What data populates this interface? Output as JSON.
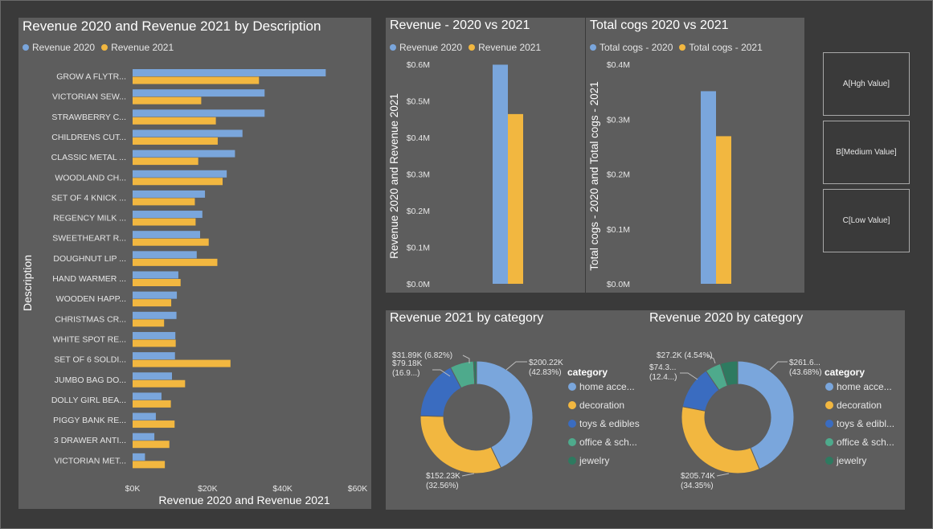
{
  "colors": {
    "series_2020": "#7aa6dc",
    "series_2021": "#f2b740",
    "home": "#7aa6dc",
    "decoration": "#f2b740",
    "toys": "#3a6cc0",
    "office": "#4eaa8c",
    "jewelry": "#2e7a60"
  },
  "bar_panel": {
    "title": "Revenue 2020 and Revenue 2021 by Description",
    "legend": [
      "Revenue 2020",
      "Revenue 2021"
    ]
  },
  "rev_panel": {
    "title": "Revenue - 2020 vs 2021",
    "legend": [
      "Revenue 2020",
      "Revenue 2021"
    ]
  },
  "cogs_panel": {
    "title": "Total cogs 2020 vs 2021",
    "legend": [
      "Total cogs - 2020",
      "Total cogs - 2021"
    ]
  },
  "donut1": {
    "title": "Revenue 2021 by category"
  },
  "donut2": {
    "title": "Revenue 2020 by category"
  },
  "slicer": {
    "buttons": [
      "A[Hgh Value]",
      "B[Medium Value]",
      "C[Low Value]"
    ]
  },
  "chart_data": [
    {
      "type": "bar",
      "orientation": "horizontal",
      "title": "Revenue 2020 and Revenue 2021 by Description",
      "xlabel": "Revenue 2020 and Revenue 2021",
      "ylabel": "Description",
      "xlim": [
        0,
        60000
      ],
      "xticks": [
        "$0K",
        "$20K",
        "$40K",
        "$60K"
      ],
      "legend_position": "top-left",
      "categories": [
        "GROW A FLYTR...",
        "VICTORIAN SEW...",
        "STRAWBERRY C...",
        "CHILDRENS CUT...",
        "CLASSIC METAL ...",
        "WOODLAND CH...",
        "SET OF 4 KNICK ...",
        "REGENCY MILK ...",
        "SWEETHEART R...",
        "DOUGHNUT LIP ...",
        "HAND WARMER ...",
        "WOODEN HAPP...",
        "CHRISTMAS CR...",
        "WHITE SPOT RE...",
        "SET OF 6 SOLDI...",
        "JUMBO BAG DO...",
        "DOLLY GIRL BEA...",
        "PIGGY BANK RE...",
        "3 DRAWER ANTI...",
        "VICTORIAN MET..."
      ],
      "series": [
        {
          "name": "Revenue 2020",
          "values": [
            51500,
            35200,
            35200,
            29300,
            27300,
            25100,
            19300,
            18600,
            18000,
            17100,
            12200,
            11800,
            11700,
            11400,
            11300,
            10500,
            7700,
            6200,
            5800,
            3300
          ]
        },
        {
          "name": "Revenue 2021",
          "values": [
            33700,
            18300,
            22200,
            22700,
            17500,
            24000,
            16600,
            16800,
            20300,
            22600,
            12800,
            10300,
            8400,
            11500,
            26100,
            14000,
            10200,
            11200,
            9800,
            8600
          ]
        }
      ]
    },
    {
      "type": "bar",
      "title": "Revenue - 2020 vs 2021",
      "ylabel": "Revenue 2020 and Revenue 2021",
      "ylim": [
        0,
        600000
      ],
      "yticks": [
        "$0.0M",
        "$0.1M",
        "$0.2M",
        "$0.3M",
        "$0.4M",
        "$0.5M",
        "$0.6M"
      ],
      "series": [
        {
          "name": "Revenue 2020",
          "values": [
            599000
          ]
        },
        {
          "name": "Revenue 2021",
          "values": [
            464000
          ]
        }
      ]
    },
    {
      "type": "bar",
      "title": "Total cogs 2020 vs 2021",
      "ylabel": "Total cogs - 2020 and Total cogs - 2021",
      "ylim": [
        0,
        400000
      ],
      "yticks": [
        "$0.0M",
        "$0.1M",
        "$0.2M",
        "$0.3M",
        "$0.4M"
      ],
      "series": [
        {
          "name": "Total cogs - 2020",
          "values": [
            351000
          ]
        },
        {
          "name": "Total cogs - 2021",
          "values": [
            269000
          ]
        }
      ]
    },
    {
      "type": "pie",
      "donut": true,
      "title": "Revenue 2021 by category",
      "legend_title": "category",
      "legend_labels": [
        "home acce...",
        "decoration",
        "toys & edibles",
        "office & sch...",
        "jewelry"
      ],
      "slices": [
        {
          "key": "home",
          "value": 200.22,
          "label1": "$200.22K",
          "label2": "(42.83%)"
        },
        {
          "key": "decoration",
          "value": 152.23,
          "label1": "$152.23K",
          "label2": "(32.56%)"
        },
        {
          "key": "toys",
          "value": 79.18,
          "label1": "$79.18K",
          "label2": "(16.9...)"
        },
        {
          "key": "office",
          "value": 31.89,
          "label1": "$31.89K (6.82%)",
          "label2": ""
        },
        {
          "key": "jewelry",
          "value": 4.0,
          "label1": "",
          "label2": ""
        }
      ]
    },
    {
      "type": "pie",
      "donut": true,
      "title": "Revenue 2020 by category",
      "legend_title": "category",
      "legend_labels": [
        "home acce...",
        "decoration",
        "toys & edibl...",
        "office & sch...",
        "jewelry"
      ],
      "slices": [
        {
          "key": "home",
          "value": 261.6,
          "label1": "$261.6...",
          "label2": "(43.68%)"
        },
        {
          "key": "decoration",
          "value": 205.74,
          "label1": "$205.74K",
          "label2": "(34.35%)"
        },
        {
          "key": "toys",
          "value": 74.3,
          "label1": "$74.3...",
          "label2": "(12.4...)"
        },
        {
          "key": "office",
          "value": 27.2,
          "label1": "$27.2K (4.54%)",
          "label2": ""
        },
        {
          "key": "jewelry",
          "value": 30.0,
          "label1": "",
          "label2": ""
        }
      ]
    }
  ]
}
